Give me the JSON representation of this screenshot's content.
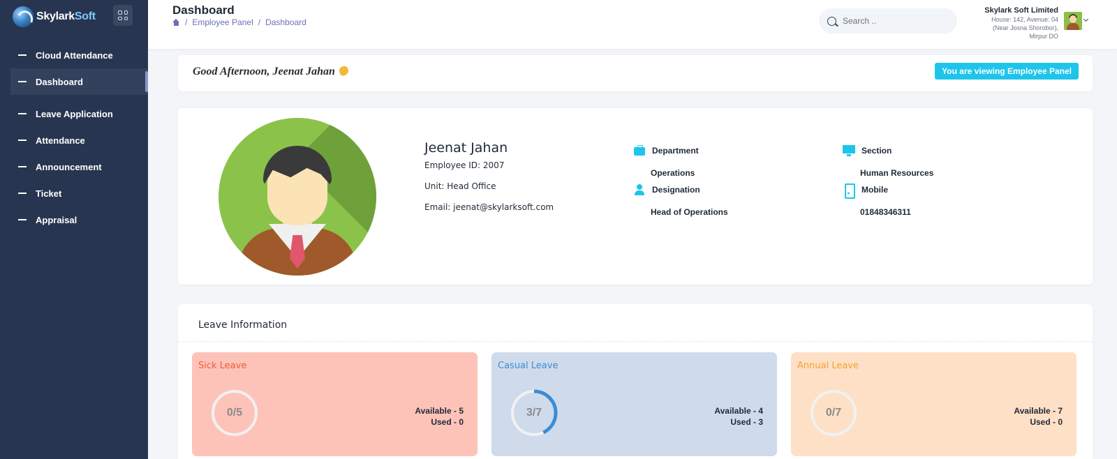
{
  "brand": {
    "name_part1": "Skylark",
    "name_part2": "Soft"
  },
  "sidebar": {
    "items": [
      {
        "label": "Cloud Attendance"
      },
      {
        "label": "Dashboard",
        "active": true
      },
      {
        "label": "Leave Application"
      },
      {
        "label": "Attendance"
      },
      {
        "label": "Announcement"
      },
      {
        "label": "Ticket"
      },
      {
        "label": "Appraisal"
      }
    ]
  },
  "header": {
    "title": "Dashboard",
    "breadcrumb": [
      "Employee Panel",
      "Dashboard"
    ],
    "search_placeholder": "Search ..",
    "company_name": "Skylark Soft Limited",
    "company_address_1": "House: 142, Avenue: 04",
    "company_address_2": "(Near Josna Shorobor),",
    "company_address_3": "Mirpur DO"
  },
  "greeting": {
    "text": "Good Afternoon, Jeenat Jahan",
    "panel_badge": "You are viewing Employee Panel"
  },
  "profile": {
    "name": "Jeenat Jahan",
    "employee_id": "Employee ID: 2007",
    "unit": "Unit: Head Office",
    "email": "Email: jeenat@skylarksoft.com",
    "department_label": "Department",
    "department": "Operations",
    "designation_label": "Designation",
    "designation": "Head of Operations",
    "section_label": "Section",
    "section": "Human Resources",
    "mobile_label": "Mobile",
    "mobile": "01848346311"
  },
  "leave": {
    "title": "Leave Information",
    "items": [
      {
        "name": "Sick Leave",
        "ratio": "0/5",
        "available": "Available - 5",
        "used": "Used - 0",
        "used_count": 0,
        "total": 5,
        "accent": "#f05a3a"
      },
      {
        "name": "Casual Leave",
        "ratio": "3/7",
        "available": "Available - 4",
        "used": "Used - 3",
        "used_count": 3,
        "total": 7,
        "accent": "#3b8cd6"
      },
      {
        "name": "Annual Leave",
        "ratio": "0/7",
        "available": "Available - 7",
        "used": "Used - 0",
        "used_count": 0,
        "total": 7,
        "accent": "#f5a030"
      }
    ]
  },
  "colors": {
    "sidebar_bg": "#283550",
    "accent_cyan": "#1ec5ea",
    "breadcrumb": "#6b6fb8"
  }
}
